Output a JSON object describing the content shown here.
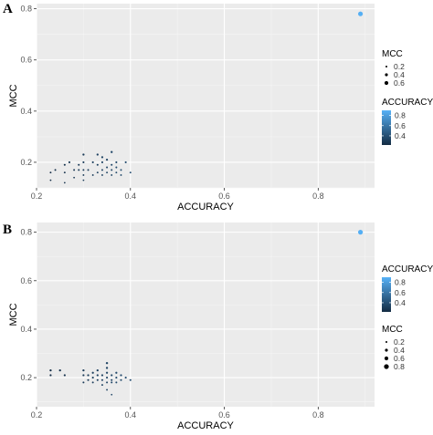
{
  "chart_data": [
    {
      "panel": "A",
      "type": "scatter",
      "title": "",
      "xlabel": "ACCURACY",
      "ylabel": "MCC",
      "xlim": [
        0.2,
        0.92
      ],
      "ylim": [
        0.1,
        0.82
      ],
      "xticks": [
        0.2,
        0.4,
        0.6,
        0.8
      ],
      "yticks": [
        0.2,
        0.4,
        0.6,
        0.8
      ],
      "grid": true,
      "legend_position": "right",
      "legends": [
        {
          "title": "MCC",
          "kind": "size",
          "labels": [
            "0.2",
            "0.4",
            "0.6"
          ]
        },
        {
          "title": "ACCURACY",
          "kind": "colorbar",
          "labels": [
            "0.8",
            "0.6",
            "0.4"
          ],
          "low_color": "#132B43",
          "high_color": "#56B1F7"
        }
      ],
      "points": [
        {
          "x": 0.23,
          "y": 0.13
        },
        {
          "x": 0.23,
          "y": 0.16
        },
        {
          "x": 0.24,
          "y": 0.17
        },
        {
          "x": 0.26,
          "y": 0.12
        },
        {
          "x": 0.26,
          "y": 0.16
        },
        {
          "x": 0.26,
          "y": 0.19
        },
        {
          "x": 0.27,
          "y": 0.2
        },
        {
          "x": 0.28,
          "y": 0.14
        },
        {
          "x": 0.28,
          "y": 0.17
        },
        {
          "x": 0.29,
          "y": 0.17
        },
        {
          "x": 0.29,
          "y": 0.19
        },
        {
          "x": 0.3,
          "y": 0.13
        },
        {
          "x": 0.3,
          "y": 0.15
        },
        {
          "x": 0.3,
          "y": 0.17
        },
        {
          "x": 0.3,
          "y": 0.2
        },
        {
          "x": 0.3,
          "y": 0.23
        },
        {
          "x": 0.31,
          "y": 0.17
        },
        {
          "x": 0.32,
          "y": 0.15
        },
        {
          "x": 0.32,
          "y": 0.2
        },
        {
          "x": 0.33,
          "y": 0.16
        },
        {
          "x": 0.33,
          "y": 0.19
        },
        {
          "x": 0.33,
          "y": 0.23
        },
        {
          "x": 0.34,
          "y": 0.15
        },
        {
          "x": 0.34,
          "y": 0.17
        },
        {
          "x": 0.34,
          "y": 0.2
        },
        {
          "x": 0.34,
          "y": 0.22
        },
        {
          "x": 0.35,
          "y": 0.16
        },
        {
          "x": 0.35,
          "y": 0.18
        },
        {
          "x": 0.35,
          "y": 0.21
        },
        {
          "x": 0.36,
          "y": 0.15
        },
        {
          "x": 0.36,
          "y": 0.17
        },
        {
          "x": 0.36,
          "y": 0.19
        },
        {
          "x": 0.36,
          "y": 0.24
        },
        {
          "x": 0.37,
          "y": 0.16
        },
        {
          "x": 0.37,
          "y": 0.18
        },
        {
          "x": 0.37,
          "y": 0.2
        },
        {
          "x": 0.38,
          "y": 0.15
        },
        {
          "x": 0.38,
          "y": 0.17
        },
        {
          "x": 0.39,
          "y": 0.2
        },
        {
          "x": 0.4,
          "y": 0.16
        },
        {
          "x": 0.89,
          "y": 0.78
        }
      ]
    },
    {
      "panel": "B",
      "type": "scatter",
      "title": "",
      "xlabel": "ACCURACY",
      "ylabel": "MCC",
      "xlim": [
        0.2,
        0.92
      ],
      "ylim": [
        0.08,
        0.84
      ],
      "xticks": [
        0.2,
        0.4,
        0.6,
        0.8
      ],
      "yticks": [
        0.2,
        0.4,
        0.6,
        0.8
      ],
      "grid": true,
      "legend_position": "right",
      "legends": [
        {
          "title": "ACCURACY",
          "kind": "colorbar",
          "labels": [
            "0.8",
            "0.6",
            "0.4"
          ],
          "low_color": "#132B43",
          "high_color": "#56B1F7"
        },
        {
          "title": "MCC",
          "kind": "size",
          "labels": [
            "0.2",
            "0.4",
            "0.6",
            "0.8"
          ]
        }
      ],
      "points": [
        {
          "x": 0.23,
          "y": 0.21
        },
        {
          "x": 0.23,
          "y": 0.23
        },
        {
          "x": 0.25,
          "y": 0.23
        },
        {
          "x": 0.26,
          "y": 0.21
        },
        {
          "x": 0.3,
          "y": 0.18
        },
        {
          "x": 0.3,
          "y": 0.21
        },
        {
          "x": 0.3,
          "y": 0.23
        },
        {
          "x": 0.31,
          "y": 0.19
        },
        {
          "x": 0.31,
          "y": 0.21
        },
        {
          "x": 0.32,
          "y": 0.18
        },
        {
          "x": 0.32,
          "y": 0.2
        },
        {
          "x": 0.32,
          "y": 0.22
        },
        {
          "x": 0.33,
          "y": 0.19
        },
        {
          "x": 0.33,
          "y": 0.21
        },
        {
          "x": 0.33,
          "y": 0.23
        },
        {
          "x": 0.34,
          "y": 0.17
        },
        {
          "x": 0.34,
          "y": 0.19
        },
        {
          "x": 0.34,
          "y": 0.21
        },
        {
          "x": 0.35,
          "y": 0.15
        },
        {
          "x": 0.35,
          "y": 0.18
        },
        {
          "x": 0.35,
          "y": 0.2
        },
        {
          "x": 0.35,
          "y": 0.22
        },
        {
          "x": 0.35,
          "y": 0.24
        },
        {
          "x": 0.35,
          "y": 0.26
        },
        {
          "x": 0.36,
          "y": 0.13
        },
        {
          "x": 0.36,
          "y": 0.18
        },
        {
          "x": 0.36,
          "y": 0.19
        },
        {
          "x": 0.36,
          "y": 0.21
        },
        {
          "x": 0.37,
          "y": 0.18
        },
        {
          "x": 0.37,
          "y": 0.2
        },
        {
          "x": 0.37,
          "y": 0.22
        },
        {
          "x": 0.38,
          "y": 0.19
        },
        {
          "x": 0.38,
          "y": 0.21
        },
        {
          "x": 0.39,
          "y": 0.2
        },
        {
          "x": 0.4,
          "y": 0.19
        },
        {
          "x": 0.89,
          "y": 0.8
        }
      ]
    }
  ],
  "panels": [
    {
      "letter": "A"
    },
    {
      "letter": "B"
    }
  ]
}
